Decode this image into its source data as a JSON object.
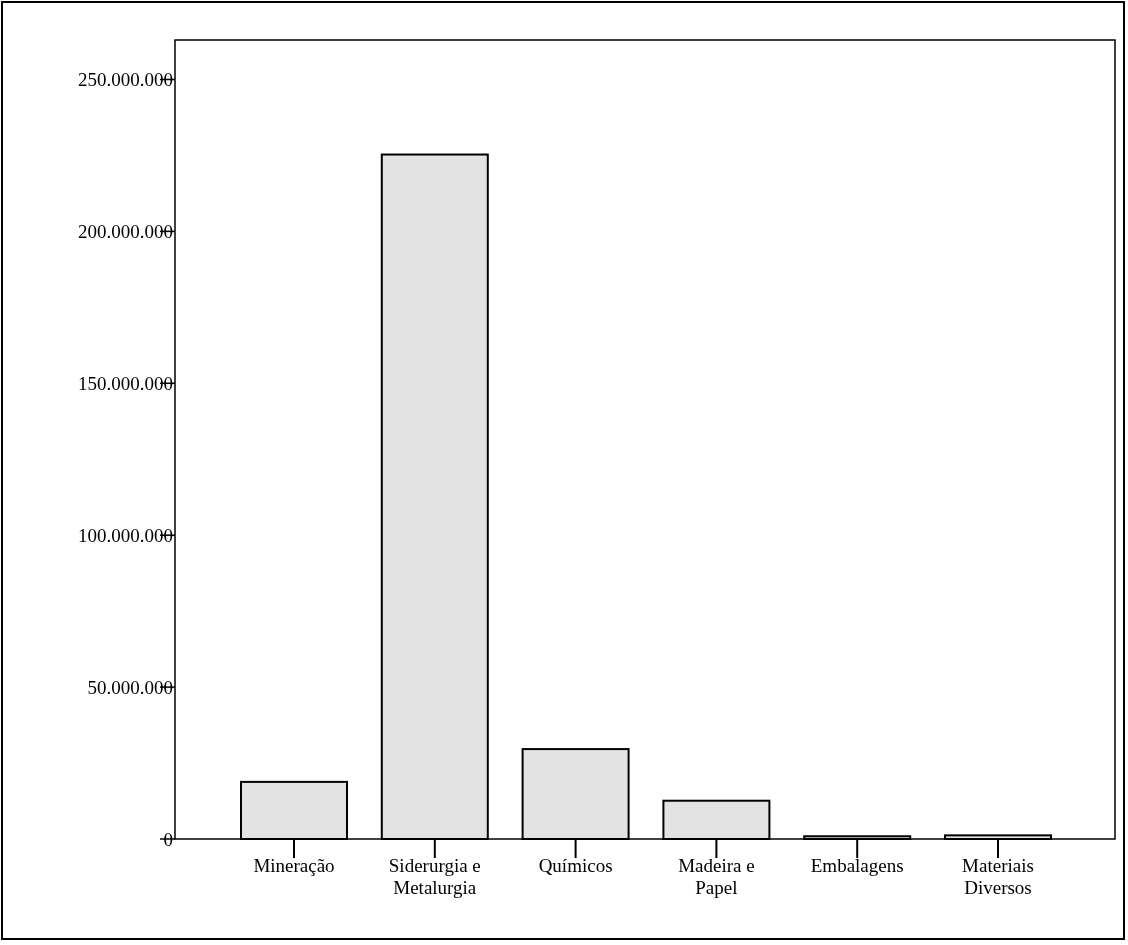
{
  "chart_data": {
    "type": "bar",
    "categories": [
      "Mineração",
      "Siderurgia e Metalurgia",
      "Químicos",
      "Madeira e Papel",
      "Embalagens",
      "Materiais Diversos"
    ],
    "values": [
      18800000,
      225300000,
      29600000,
      12600000,
      900000,
      1200000
    ],
    "color": "#e3e3e3",
    "ylim": [
      0,
      263000000
    ],
    "yticks": [
      {
        "value": 0,
        "label": "0"
      },
      {
        "value": 50000000,
        "label": "50.000.000"
      },
      {
        "value": 100000000,
        "label": "100.000.000"
      },
      {
        "value": 150000000,
        "label": "150.000.000"
      },
      {
        "value": 200000000,
        "label": "200.000.000"
      },
      {
        "value": 250000000,
        "label": "250.000.000"
      }
    ],
    "grid": false
  }
}
